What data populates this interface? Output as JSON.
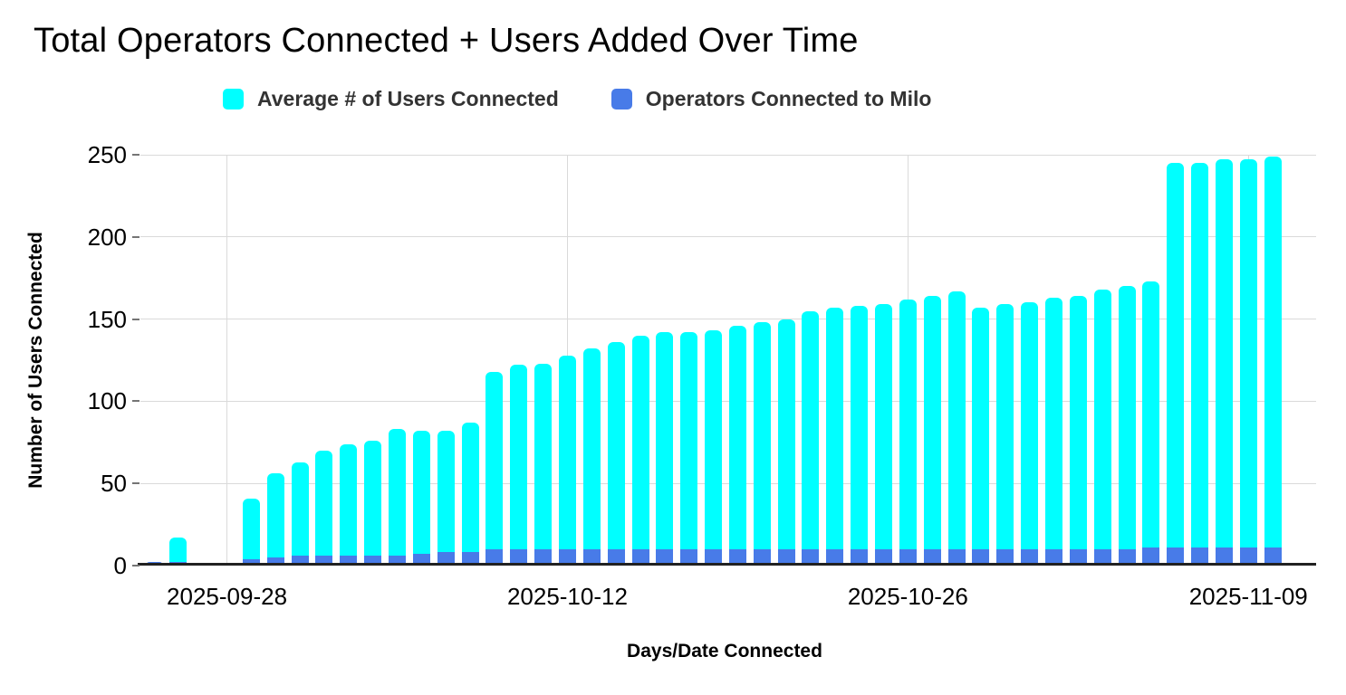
{
  "title": "Total Operators Connected + Users Added Over Time",
  "legend": [
    {
      "label": "Average # of Users Connected",
      "color": "#00ffff"
    },
    {
      "label": "Operators Connected to Milo",
      "color": "#487be8"
    }
  ],
  "axes": {
    "y_title": "Number of Users Connected",
    "x_title": "Days/Date Connected",
    "y_ticks": [
      0,
      50,
      100,
      150,
      200,
      250
    ],
    "x_tick_labels": [
      "2025-09-28",
      "2025-10-12",
      "2025-10-26",
      "2025-11-09"
    ]
  },
  "colors": {
    "users": "#00ffff",
    "operators": "#487be8",
    "gridline": "#dadada",
    "axis_line": "#212121"
  },
  "chart_data": {
    "type": "bar",
    "stacked": true,
    "title": "Total Operators Connected + Users Added Over Time",
    "xlabel": "Days/Date Connected",
    "ylabel": "Number of Users Connected",
    "ylim": [
      0,
      250
    ],
    "grid_step": 50,
    "legend_position": "top",
    "x": [
      "2025-09-25",
      "2025-09-26",
      "2025-09-27",
      "2025-09-28",
      "2025-09-29",
      "2025-09-30",
      "2025-10-01",
      "2025-10-02",
      "2025-10-03",
      "2025-10-04",
      "2025-10-05",
      "2025-10-06",
      "2025-10-07",
      "2025-10-08",
      "2025-10-09",
      "2025-10-10",
      "2025-10-11",
      "2025-10-12",
      "2025-10-13",
      "2025-10-14",
      "2025-10-15",
      "2025-10-16",
      "2025-10-17",
      "2025-10-18",
      "2025-10-19",
      "2025-10-20",
      "2025-10-21",
      "2025-10-22",
      "2025-10-23",
      "2025-10-24",
      "2025-10-25",
      "2025-10-26",
      "2025-10-27",
      "2025-10-28",
      "2025-10-29",
      "2025-10-30",
      "2025-10-31",
      "2025-11-01",
      "2025-11-02",
      "2025-11-03",
      "2025-11-04",
      "2025-11-05",
      "2025-11-06",
      "2025-11-07",
      "2025-11-08",
      "2025-11-09",
      "2025-11-10"
    ],
    "series": [
      {
        "name": "Operators Connected to Milo",
        "color": "#487be8",
        "stack_order": "bottom",
        "values": [
          2,
          2,
          0,
          0,
          4,
          5,
          6,
          6,
          6,
          6,
          6,
          7,
          8,
          8,
          10,
          10,
          10,
          10,
          10,
          10,
          10,
          10,
          10,
          10,
          10,
          10,
          10,
          10,
          10,
          10,
          10,
          10,
          10,
          10,
          10,
          10,
          10,
          10,
          10,
          10,
          10,
          11,
          11,
          11,
          11,
          11,
          11
        ]
      },
      {
        "name": "Average # of Users Connected",
        "color": "#00ffff",
        "stack_order": "top",
        "values": [
          0,
          15,
          0,
          0,
          37,
          51,
          57,
          64,
          68,
          70,
          77,
          75,
          74,
          79,
          108,
          112,
          113,
          118,
          122,
          126,
          130,
          132,
          132,
          133,
          136,
          138,
          140,
          145,
          147,
          148,
          149,
          152,
          154,
          157,
          147,
          149,
          150,
          153,
          154,
          158,
          160,
          162,
          234,
          234,
          236,
          236,
          238
        ]
      }
    ],
    "stack_totals": [
      2,
      17,
      0,
      0,
      41,
      56,
      63,
      70,
      74,
      76,
      83,
      82,
      82,
      87,
      118,
      122,
      123,
      128,
      132,
      136,
      140,
      142,
      142,
      143,
      146,
      148,
      150,
      155,
      157,
      158,
      159,
      162,
      164,
      167,
      157,
      159,
      160,
      163,
      164,
      168,
      170,
      173,
      245,
      245,
      247,
      247,
      249
    ]
  }
}
